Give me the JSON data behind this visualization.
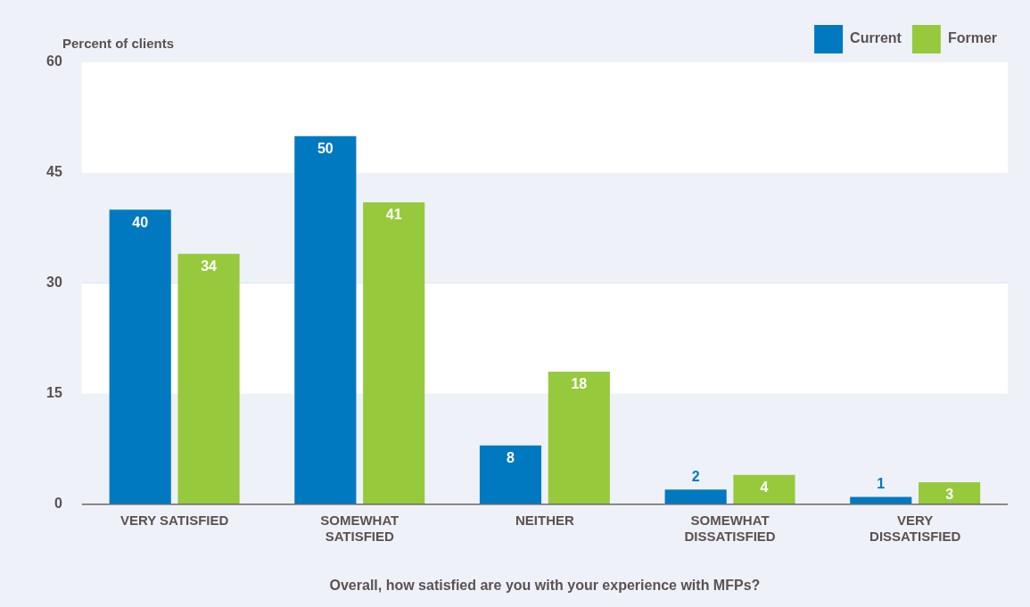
{
  "chart_data": {
    "type": "bar",
    "ylabel": "Percent of clients",
    "xlabel": "Overall, how satisfied are you with your experience with MFPs?",
    "categories": [
      "VERY SATISFIED",
      "SOMEWHAT SATISFIED",
      "NEITHER",
      "SOMEWHAT DISSATISFIED",
      "VERY DISSATISFIED"
    ],
    "series": [
      {
        "name": "Current",
        "color": "#0079c1",
        "values": [
          40,
          50,
          8,
          2,
          1
        ]
      },
      {
        "name": "Former",
        "color": "#97c93d",
        "values": [
          34,
          41,
          18,
          4,
          3
        ]
      }
    ],
    "ylim": [
      0,
      60
    ],
    "yticks": [
      0,
      15,
      30,
      45,
      60
    ],
    "grid": "y",
    "legend": "top right",
    "data_labels": true
  }
}
